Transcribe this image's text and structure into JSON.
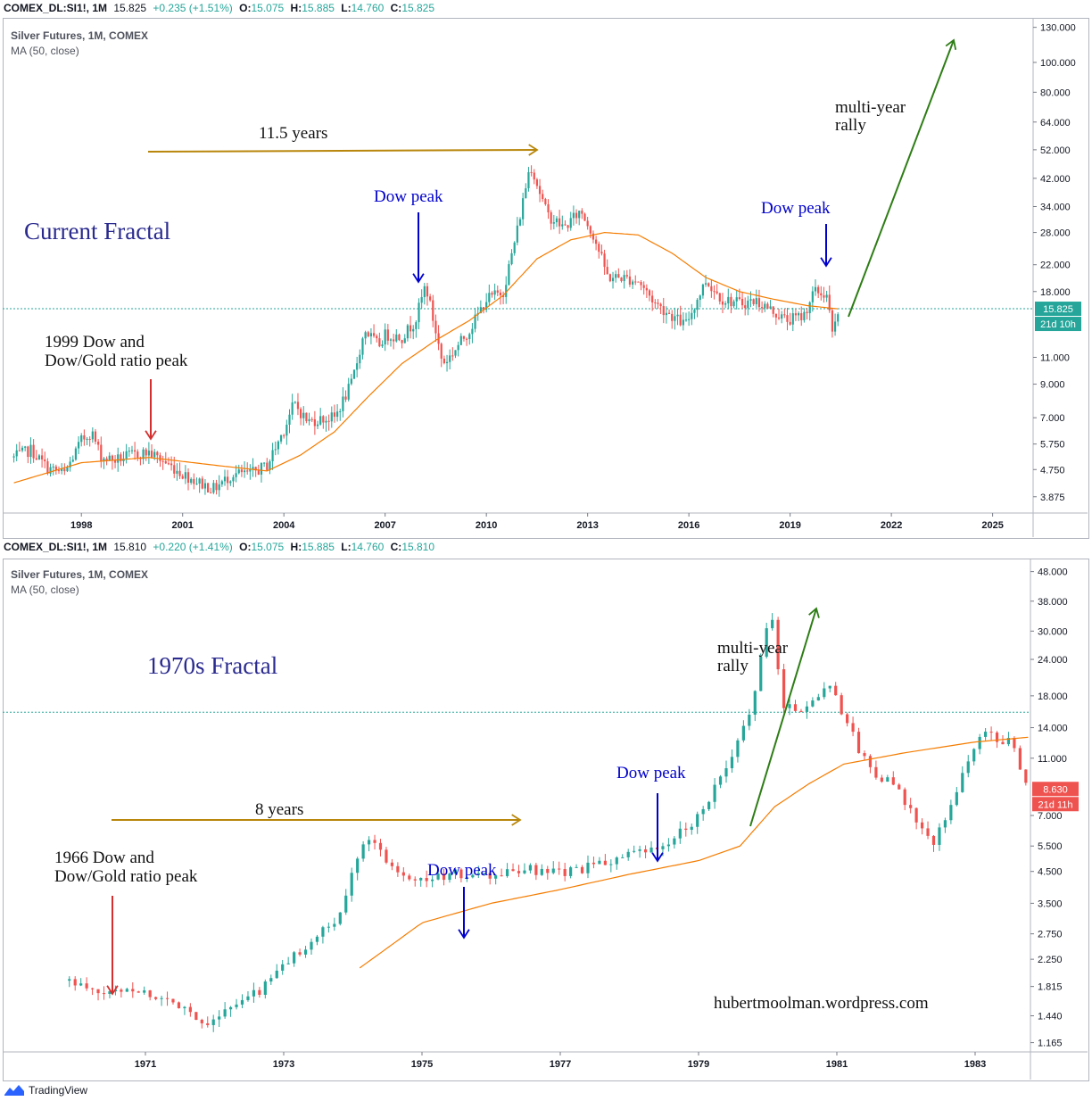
{
  "panels": [
    {
      "header": {
        "symbol": "COMEX_DL:SI1!, 1M",
        "price": "15.825",
        "change": "+0.235 (+1.51%)",
        "o_label": "O:",
        "o": "15.075",
        "h_label": "H:",
        "h": "15.885",
        "l_label": "L:",
        "l": "14.760",
        "c_label": "C:",
        "c": "15.825"
      },
      "legend_title": "Silver Futures, 1M, COMEX",
      "legend_ma": "MA (50, close)",
      "price_tag": "15.825",
      "time_tag": "21d 10h",
      "y_ticks": [
        "130.000",
        "100.000",
        "80.000",
        "64.000",
        "52.000",
        "42.000",
        "34.000",
        "28.000",
        "22.000",
        "18.000",
        "11.000",
        "9.000",
        "7.000",
        "5.750",
        "4.750",
        "3.875"
      ],
      "x_ticks": [
        "1998",
        "2001",
        "2004",
        "2007",
        "2010",
        "2013",
        "2016",
        "2019",
        "2022",
        "2025"
      ],
      "annotations": {
        "fractal_title": "Current Fractal",
        "span_label": "11.5 years",
        "peak_label_1": "1999 Dow and",
        "peak_label_2": "Dow/Gold ratio peak",
        "dow_peak_a": "Dow peak",
        "dow_peak_b": "Dow peak",
        "rally_1": "multi-year",
        "rally_2": "rally"
      }
    },
    {
      "header": {
        "symbol": "COMEX_DL:SI1!, 1M",
        "price": "15.810",
        "change": "+0.220 (+1.41%)",
        "o_label": "O:",
        "o": "15.075",
        "h_label": "H:",
        "h": "15.885",
        "l_label": "L:",
        "l": "14.760",
        "c_label": "C:",
        "c": "15.810"
      },
      "legend_title": "Silver Futures, 1M, COMEX",
      "legend_ma": "MA (50, close)",
      "price_tag": "8.630",
      "time_tag": "21d 11h",
      "y_ticks": [
        "48.000",
        "38.000",
        "30.000",
        "24.000",
        "18.000",
        "14.000",
        "11.000",
        "7.000",
        "5.500",
        "4.500",
        "3.500",
        "2.750",
        "2.250",
        "1.815",
        "1.440",
        "1.165"
      ],
      "x_ticks": [
        "1971",
        "1973",
        "1975",
        "1977",
        "1979",
        "1981",
        "1983"
      ],
      "annotations": {
        "fractal_title": "1970s Fractal",
        "span_label": "8 years",
        "peak_label_1": "1966 Dow and",
        "peak_label_2": "Dow/Gold ratio peak",
        "dow_peak_a": "Dow peak",
        "dow_peak_b": "Dow peak",
        "rally_1": "multi-year",
        "rally_2": "rally",
        "watermark": "hubertmoolman.wordpress.com"
      }
    }
  ],
  "footer": {
    "brand": "TradingView"
  },
  "colors": {
    "up": "#26a69a",
    "down": "#ef5350",
    "ma": "#f57c00",
    "price_line": "#26a69a",
    "annotation_blue": "#0000cc",
    "annotation_green": "#2e7d16",
    "annotation_gold": "#b8860b",
    "annotation_red": "#d32f2f",
    "title_purple": "#2a2a8f"
  },
  "chart_data": [
    {
      "type": "candlestick",
      "title": "Silver Futures, 1M, COMEX",
      "scale": "log",
      "ylim": [
        3.5,
        135
      ],
      "xlim": [
        1995.8,
        2026.2
      ],
      "ma_label": "MA (50, close)",
      "last_price": 15.825,
      "close_path": [
        [
          1996,
          5.2
        ],
        [
          1996.5,
          5.5
        ],
        [
          1997,
          4.8
        ],
        [
          1997.5,
          4.6
        ],
        [
          1998,
          5.9
        ],
        [
          1998.3,
          6.3
        ],
        [
          1998.6,
          5.2
        ],
        [
          1999,
          5.1
        ],
        [
          1999.5,
          5.3
        ],
        [
          2000,
          5.4
        ],
        [
          2000.5,
          5.0
        ],
        [
          2001,
          4.6
        ],
        [
          2001.5,
          4.3
        ],
        [
          2001.9,
          4.1
        ],
        [
          2002.5,
          4.6
        ],
        [
          2003,
          4.6
        ],
        [
          2003.5,
          4.9
        ],
        [
          2004,
          6.4
        ],
        [
          2004.3,
          7.8
        ],
        [
          2004.7,
          6.8
        ],
        [
          2005,
          6.9
        ],
        [
          2005.5,
          7.0
        ],
        [
          2006,
          9.0
        ],
        [
          2006.4,
          13.5
        ],
        [
          2006.8,
          12.0
        ],
        [
          2007,
          13.0
        ],
        [
          2007.5,
          12.8
        ],
        [
          2007.9,
          14.5
        ],
        [
          2008.2,
          19.0
        ],
        [
          2008.7,
          10.5
        ],
        [
          2008.9,
          11.0
        ],
        [
          2009.5,
          13.5
        ],
        [
          2010,
          17.0
        ],
        [
          2010.5,
          18.0
        ],
        [
          2010.9,
          28.0
        ],
        [
          2011.3,
          47.0
        ],
        [
          2011.8,
          32.0
        ],
        [
          2012.3,
          29.0
        ],
        [
          2012.8,
          33.0
        ],
        [
          2013.2,
          27.0
        ],
        [
          2013.6,
          20.0
        ],
        [
          2014,
          20.0
        ],
        [
          2014.5,
          19.5
        ],
        [
          2015,
          16.5
        ],
        [
          2015.5,
          15.0
        ],
        [
          2015.9,
          14.0
        ],
        [
          2016.5,
          19.5
        ],
        [
          2017,
          17.0
        ],
        [
          2017.5,
          16.5
        ],
        [
          2018,
          16.8
        ],
        [
          2018.5,
          15.5
        ],
        [
          2018.9,
          14.5
        ],
        [
          2019.4,
          15.0
        ],
        [
          2019.7,
          18.0
        ],
        [
          2020.1,
          17.5
        ],
        [
          2020.25,
          13.0
        ],
        [
          2020.45,
          15.825
        ]
      ],
      "ma_path": [
        [
          1996,
          4.3
        ],
        [
          1998,
          5.0
        ],
        [
          2000,
          5.2
        ],
        [
          2002,
          4.9
        ],
        [
          2003.5,
          4.7
        ],
        [
          2004.5,
          5.3
        ],
        [
          2005.5,
          6.3
        ],
        [
          2006.5,
          8.2
        ],
        [
          2007.5,
          10.5
        ],
        [
          2008.5,
          12.5
        ],
        [
          2009.5,
          14.5
        ],
        [
          2010.5,
          17.5
        ],
        [
          2011.5,
          23.0
        ],
        [
          2012.5,
          26.5
        ],
        [
          2013.5,
          28.0
        ],
        [
          2014.5,
          27.5
        ],
        [
          2015.5,
          24.0
        ],
        [
          2016.5,
          20.0
        ],
        [
          2017.5,
          18.0
        ],
        [
          2018.5,
          17.0
        ],
        [
          2019.5,
          16.2
        ],
        [
          2020.45,
          15.8
        ]
      ]
    },
    {
      "type": "candlestick",
      "title": "Silver Futures, 1M, COMEX",
      "scale": "log",
      "ylim": [
        1.06,
        51
      ],
      "xlim": [
        1969.0,
        1983.8
      ],
      "ma_label": "MA (50, close)",
      "last_price": 8.63,
      "reference_level": 15.81,
      "close_path": [
        [
          1969.9,
          1.9
        ],
        [
          1970.3,
          1.7
        ],
        [
          1970.8,
          1.8
        ],
        [
          1971.2,
          1.65
        ],
        [
          1971.6,
          1.55
        ],
        [
          1971.8,
          1.35
        ],
        [
          1972.3,
          1.55
        ],
        [
          1972.7,
          1.8
        ],
        [
          1973,
          2.15
        ],
        [
          1973.4,
          2.6
        ],
        [
          1973.8,
          3.1
        ],
        [
          1974.1,
          5.5
        ],
        [
          1974.2,
          6.0
        ],
        [
          1974.6,
          4.6
        ],
        [
          1975,
          4.2
        ],
        [
          1975.5,
          4.4
        ],
        [
          1976,
          4.3
        ],
        [
          1976.5,
          4.6
        ],
        [
          1976.8,
          4.4
        ],
        [
          1977.2,
          4.5
        ],
        [
          1977.6,
          4.8
        ],
        [
          1978,
          5.1
        ],
        [
          1978.5,
          5.4
        ],
        [
          1979,
          7.0
        ],
        [
          1979.5,
          11.0
        ],
        [
          1979.8,
          18.0
        ],
        [
          1980.05,
          36.0
        ],
        [
          1980.2,
          17.0
        ],
        [
          1980.5,
          16.0
        ],
        [
          1980.9,
          20.0
        ],
        [
          1981.3,
          12.0
        ],
        [
          1981.5,
          10.0
        ],
        [
          1981.8,
          9.0
        ],
        [
          1982.1,
          7.0
        ],
        [
          1982.4,
          5.5
        ],
        [
          1982.8,
          9.5
        ],
        [
          1983.1,
          13.5
        ],
        [
          1983.5,
          12.5
        ],
        [
          1983.8,
          8.63
        ]
      ],
      "ma_path": [
        [
          1974.1,
          2.1
        ],
        [
          1975,
          3.0
        ],
        [
          1976,
          3.5
        ],
        [
          1977,
          3.9
        ],
        [
          1978,
          4.4
        ],
        [
          1979,
          4.9
        ],
        [
          1979.6,
          5.5
        ],
        [
          1980.1,
          7.5
        ],
        [
          1980.6,
          9.0
        ],
        [
          1981.1,
          10.5
        ],
        [
          1982,
          11.5
        ],
        [
          1983,
          12.5
        ],
        [
          1983.8,
          13.0
        ]
      ]
    }
  ]
}
